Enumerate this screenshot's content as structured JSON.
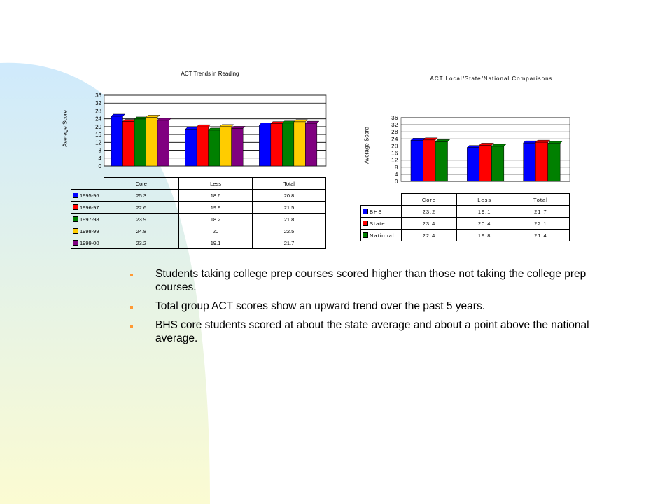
{
  "colors": {
    "background_gradient_top": "#cfeafc",
    "background_gradient_bottom": "#fbfbd2",
    "bullet": "#ff9933"
  },
  "bullets": [
    "Students taking college prep courses scored higher than those not taking the college prep courses.",
    "Total group ACT scores show an upward trend over the past 5 years.",
    "BHS core students scored at about the state average and about a point above the national average."
  ],
  "chart_data": [
    {
      "type": "bar",
      "title": "ACT Trends in Reading",
      "ylabel": "Average Score",
      "xlabel": "",
      "categories": [
        "Core",
        "Less",
        "Total"
      ],
      "ylim": [
        0,
        36
      ],
      "yticks": [
        "0",
        "4",
        "8",
        "12",
        "16",
        "20",
        "24",
        "28",
        "32",
        "36"
      ],
      "grid": true,
      "legend": "table-below",
      "series": [
        {
          "name": "1995-96",
          "color": "#0000ff",
          "values": [
            25.3,
            18.6,
            20.8
          ],
          "labels": [
            "25.3",
            "18.6",
            "20.8"
          ]
        },
        {
          "name": "1996-97",
          "color": "#ff0000",
          "values": [
            22.6,
            19.9,
            21.5
          ],
          "labels": [
            "22.6",
            "19.9",
            "21.5"
          ]
        },
        {
          "name": "1997-98",
          "color": "#008000",
          "values": [
            23.9,
            18.2,
            21.8
          ],
          "labels": [
            "23.9",
            "18.2",
            "21.8"
          ]
        },
        {
          "name": "1998-99",
          "color": "#ffcc00",
          "values": [
            24.8,
            20,
            22.5
          ],
          "labels": [
            "24.8",
            "20",
            "22.5"
          ]
        },
        {
          "name": "1999-00",
          "color": "#800080",
          "values": [
            23.2,
            19.1,
            21.7
          ],
          "labels": [
            "23.2",
            "19.1",
            "21.7"
          ]
        }
      ]
    },
    {
      "type": "bar",
      "title": "ACT Local/State/National Comparisons",
      "ylabel": "Average Score",
      "xlabel": "",
      "categories": [
        "Core",
        "Less",
        "Total"
      ],
      "ylim": [
        0,
        36
      ],
      "yticks": [
        "0",
        "4",
        "8",
        "12",
        "16",
        "20",
        "24",
        "28",
        "32",
        "36"
      ],
      "grid": true,
      "legend": "table-below",
      "series": [
        {
          "name": "BHS",
          "color": "#0000ff",
          "values": [
            23.2,
            19.1,
            21.7
          ],
          "labels": [
            "23.2",
            "19.1",
            "21.7"
          ]
        },
        {
          "name": "State",
          "color": "#ff0000",
          "values": [
            23.4,
            20.4,
            22.1
          ],
          "labels": [
            "23.4",
            "20.4",
            "22.1"
          ]
        },
        {
          "name": "National",
          "color": "#008000",
          "values": [
            22.4,
            19.8,
            21.4
          ],
          "labels": [
            "22.4",
            "19.8",
            "21.4"
          ]
        }
      ]
    }
  ]
}
